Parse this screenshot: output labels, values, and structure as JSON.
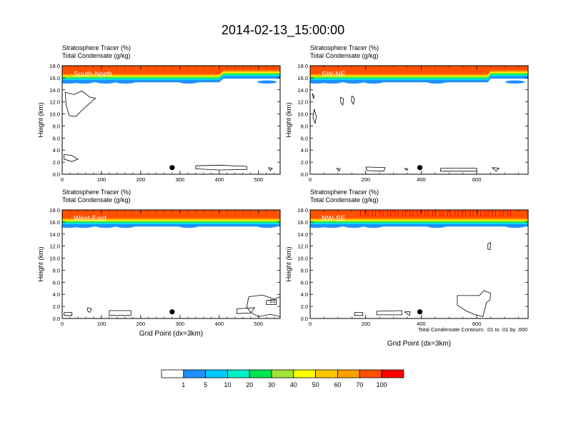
{
  "title": "2014-02-13_15:00:00",
  "colors": {
    "bins": [
      "#ffffff",
      "#1e90ff",
      "#00c8ff",
      "#00f0c8",
      "#00e650",
      "#a0e632",
      "#ffff00",
      "#ffc800",
      "#ffa000",
      "#ff5000",
      "#ff0000"
    ],
    "ink": "#000000"
  },
  "colorbar": {
    "labels": [
      "1",
      "5",
      "10",
      "20",
      "30",
      "40",
      "50",
      "60",
      "70",
      "100"
    ]
  },
  "footnote": "Total Condensate Contours: .01 to .01 by .000",
  "chart_data": [
    {
      "type": "heatmap",
      "line1": "Stratosphere Tracer   (%)",
      "line2": "Total Condensate   (g/kg)",
      "panel_label": "South-North",
      "ylabel": "Height (km)",
      "xlabel": "",
      "xlim": [
        0,
        555
      ],
      "ylim": [
        0,
        18
      ],
      "xticks": [
        0,
        100,
        200,
        300,
        400,
        500
      ],
      "yticks": [
        "0.0",
        "2.0",
        "4.0",
        "6.0",
        "8.0",
        "10.0",
        "12.0",
        "14.0",
        "16.0",
        "18.0"
      ],
      "tracer_top_height_km": [
        [
          0,
          16.0
        ],
        [
          400,
          16.0
        ],
        [
          410,
          16.6
        ],
        [
          555,
          16.6
        ]
      ],
      "marker": {
        "x": 280,
        "y": 1.1
      },
      "condensate_contours": [
        [
          [
            8,
            13.6
          ],
          [
            30,
            13.2
          ],
          [
            50,
            13.8
          ],
          [
            70,
            12.8
          ],
          [
            85,
            12.6
          ],
          [
            60,
            11.2
          ],
          [
            35,
            9.6
          ],
          [
            18,
            9.7
          ],
          [
            10,
            11.5
          ],
          [
            8,
            13.6
          ]
        ],
        [
          [
            5,
            3.3
          ],
          [
            25,
            3.1
          ],
          [
            40,
            2.5
          ],
          [
            25,
            2.1
          ],
          [
            5,
            2.5
          ],
          [
            5,
            3.3
          ]
        ],
        [
          [
            340,
            1.4
          ],
          [
            400,
            1.5
          ],
          [
            470,
            1.3
          ],
          [
            470,
            0.8
          ],
          [
            400,
            0.7
          ],
          [
            340,
            0.9
          ],
          [
            340,
            1.4
          ]
        ],
        [
          [
            525,
            1.1
          ],
          [
            535,
            1.0
          ],
          [
            530,
            0.6
          ],
          [
            525,
            1.1
          ]
        ]
      ]
    },
    {
      "type": "heatmap",
      "line1": "Stratosphere Tracer   (%)",
      "line2": "Total Condensate   (g/kg)",
      "panel_label": "SW-NE",
      "ylabel": "Height (km)",
      "xlabel": "",
      "xlim": [
        0,
        785
      ],
      "ylim": [
        0,
        18
      ],
      "xticks": [
        0,
        200,
        400,
        600
      ],
      "yticks": [
        "0.0",
        "2.0",
        "4.0",
        "6.0",
        "8.0",
        "10.0",
        "12.0",
        "14.0",
        "16.0",
        "18.0"
      ],
      "tracer_top_height_km": [
        [
          0,
          16.0
        ],
        [
          640,
          16.0
        ],
        [
          650,
          16.6
        ],
        [
          785,
          16.6
        ]
      ],
      "marker": {
        "x": 395,
        "y": 1.1
      },
      "condensate_contours": [
        [
          [
            8,
            13.4
          ],
          [
            14,
            13.0
          ],
          [
            12,
            12.5
          ],
          [
            8,
            13.4
          ]
        ],
        [
          [
            15,
            10.8
          ],
          [
            22,
            9.6
          ],
          [
            18,
            8.4
          ],
          [
            10,
            9.4
          ],
          [
            15,
            10.8
          ]
        ],
        [
          [
            110,
            12.8
          ],
          [
            120,
            12.5
          ],
          [
            118,
            11.5
          ],
          [
            110,
            11.9
          ],
          [
            110,
            12.8
          ]
        ],
        [
          [
            150,
            13.0
          ],
          [
            160,
            12.6
          ],
          [
            156,
            11.6
          ],
          [
            148,
            12.2
          ],
          [
            150,
            13.0
          ]
        ],
        [
          [
            95,
            1.0
          ],
          [
            108,
            0.9
          ],
          [
            104,
            0.5
          ],
          [
            95,
            1.0
          ]
        ],
        [
          [
            200,
            1.2
          ],
          [
            270,
            1.1
          ],
          [
            265,
            0.5
          ],
          [
            205,
            0.6
          ],
          [
            200,
            1.2
          ]
        ],
        [
          [
            340,
            1.0
          ],
          [
            352,
            0.9
          ],
          [
            348,
            0.6
          ],
          [
            340,
            1.0
          ]
        ],
        [
          [
            470,
            1.0
          ],
          [
            600,
            1.0
          ],
          [
            600,
            0.5
          ],
          [
            470,
            0.5
          ],
          [
            470,
            1.0
          ]
        ],
        [
          [
            655,
            1.1
          ],
          [
            680,
            1.0
          ],
          [
            670,
            0.5
          ],
          [
            655,
            1.1
          ]
        ]
      ]
    },
    {
      "type": "heatmap",
      "line1": "Stratosphere Tracer   (%)",
      "line2": "Total Condensate   (g/kg)",
      "panel_label": "West-East",
      "ylabel": "Height (km)",
      "xlabel": "Grid Point (dx=3km)",
      "xlim": [
        0,
        555
      ],
      "ylim": [
        0,
        18
      ],
      "xticks": [
        0,
        100,
        200,
        300,
        400,
        500
      ],
      "yticks": [
        "0.0",
        "2.0",
        "4.0",
        "6.0",
        "8.0",
        "10.0",
        "12.0",
        "14.0",
        "16.0",
        "18.0"
      ],
      "tracer_top_height_km": [
        [
          0,
          16.0
        ],
        [
          555,
          16.0
        ]
      ],
      "marker": {
        "x": 280,
        "y": 1.1
      },
      "condensate_contours": [
        [
          [
            5,
            1.0
          ],
          [
            25,
            1.0
          ],
          [
            25,
            0.5
          ],
          [
            5,
            0.5
          ],
          [
            5,
            1.0
          ]
        ],
        [
          [
            65,
            1.8
          ],
          [
            75,
            1.6
          ],
          [
            70,
            1.0
          ],
          [
            64,
            1.3
          ],
          [
            65,
            1.8
          ]
        ],
        [
          [
            120,
            1.3
          ],
          [
            175,
            1.3
          ],
          [
            175,
            0.5
          ],
          [
            120,
            0.5
          ],
          [
            120,
            1.3
          ]
        ],
        [
          [
            445,
            1.6
          ],
          [
            490,
            1.8
          ],
          [
            480,
            0.9
          ],
          [
            445,
            0.8
          ],
          [
            445,
            1.6
          ]
        ],
        [
          [
            475,
            3.6
          ],
          [
            510,
            3.9
          ],
          [
            540,
            3.2
          ],
          [
            555,
            3.6
          ],
          [
            555,
            0.3
          ],
          [
            530,
            0.7
          ],
          [
            500,
            0.3
          ],
          [
            480,
            1.0
          ],
          [
            470,
            1.9
          ],
          [
            475,
            3.6
          ]
        ],
        [
          [
            520,
            3.0
          ],
          [
            545,
            3.1
          ],
          [
            545,
            2.3
          ],
          [
            520,
            2.3
          ],
          [
            520,
            3.0
          ]
        ]
      ],
      "annotations": [
        {
          "x": 525,
          "y": 2.6,
          "text": ".01"
        }
      ]
    },
    {
      "type": "heatmap",
      "line1": "Stratosphere Tracer   (%)",
      "line2": "Total Condensate   (g/kg)",
      "panel_label": "NW-SE",
      "ylabel": "Height (km)",
      "xlabel": "Grid Point (dx=3km)",
      "xlim": [
        0,
        785
      ],
      "ylim": [
        0,
        18
      ],
      "xticks": [
        0,
        200,
        400,
        600
      ],
      "yticks": [
        "0.0",
        "2.0",
        "4.0",
        "6.0",
        "8.0",
        "10.0",
        "12.0",
        "14.0",
        "16.0",
        "18.0"
      ],
      "tracer_top_height_km": [
        [
          0,
          16.0
        ],
        [
          785,
          16.0
        ]
      ],
      "marker": {
        "x": 395,
        "y": 1.1
      },
      "condensate_contours": [
        [
          [
            640,
            12.4
          ],
          [
            650,
            12.6
          ],
          [
            648,
            11.4
          ],
          [
            640,
            11.5
          ],
          [
            640,
            12.4
          ]
        ],
        [
          [
            530,
            3.8
          ],
          [
            610,
            3.8
          ],
          [
            625,
            4.6
          ],
          [
            650,
            4.2
          ],
          [
            648,
            3.1
          ],
          [
            635,
            2.6
          ],
          [
            622,
            0.3
          ],
          [
            590,
            0.7
          ],
          [
            560,
            1.3
          ],
          [
            530,
            2.2
          ],
          [
            530,
            3.8
          ]
        ],
        [
          [
            160,
            1.0
          ],
          [
            190,
            1.0
          ],
          [
            190,
            0.5
          ],
          [
            160,
            0.5
          ],
          [
            160,
            1.0
          ]
        ],
        [
          [
            240,
            1.2
          ],
          [
            330,
            1.3
          ],
          [
            330,
            0.6
          ],
          [
            240,
            0.6
          ],
          [
            240,
            1.2
          ]
        ],
        [
          [
            340,
            1.1
          ],
          [
            360,
            1.1
          ],
          [
            358,
            0.5
          ],
          [
            340,
            1.1
          ]
        ]
      ]
    }
  ]
}
